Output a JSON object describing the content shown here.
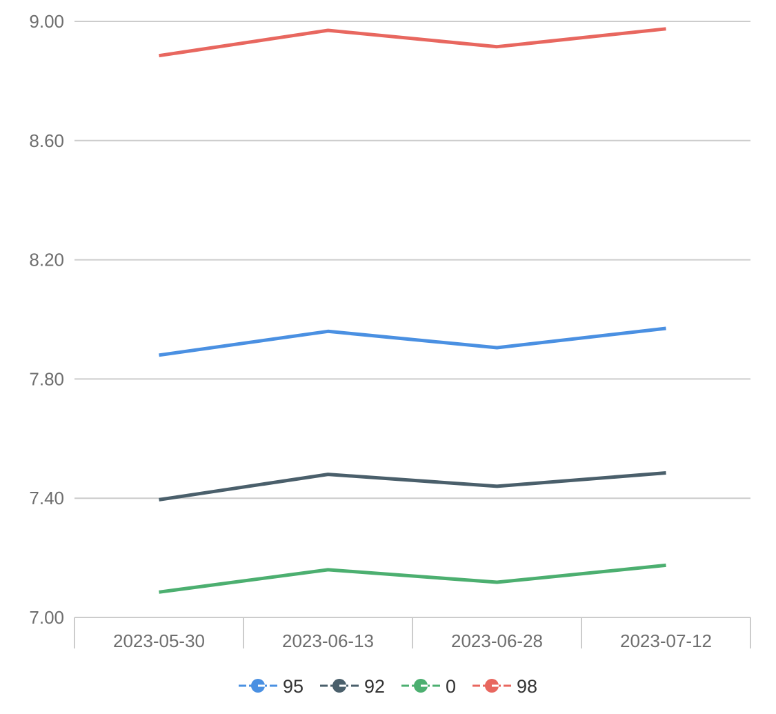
{
  "chart_data": {
    "type": "line",
    "x": [
      "2023-05-30",
      "2023-06-13",
      "2023-06-28",
      "2023-07-12"
    ],
    "ylim": [
      7.0,
      9.0
    ],
    "yticks": [
      "7.00",
      "7.40",
      "7.80",
      "8.20",
      "8.60",
      "9.00"
    ],
    "series": [
      {
        "name": "95",
        "color": "#4a90e2",
        "values": [
          7.88,
          7.96,
          7.905,
          7.97
        ]
      },
      {
        "name": "92",
        "color": "#4a5f6b",
        "values": [
          7.395,
          7.48,
          7.44,
          7.485
        ]
      },
      {
        "name": "0",
        "color": "#4caf70",
        "values": [
          7.085,
          7.16,
          7.118,
          7.175
        ]
      },
      {
        "name": "98",
        "color": "#e8675f",
        "values": [
          8.885,
          8.97,
          8.915,
          8.975
        ]
      }
    ],
    "grid": true,
    "legend": "bottom-center"
  }
}
